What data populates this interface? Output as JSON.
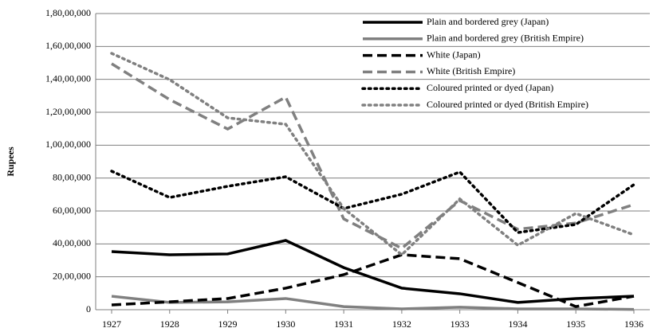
{
  "chart_data": {
    "type": "line",
    "categories": [
      "1927",
      "1928",
      "1929",
      "1930",
      "1931",
      "1932",
      "1933",
      "1934",
      "1935",
      "1936"
    ],
    "y_label": "Rupees",
    "ylim": [
      0,
      18000000
    ],
    "yticks": [
      {
        "value": 0,
        "label": "0"
      },
      {
        "value": 2000000,
        "label": "20,00,000"
      },
      {
        "value": 4000000,
        "label": "40,00,000"
      },
      {
        "value": 6000000,
        "label": "60,00,000"
      },
      {
        "value": 8000000,
        "label": "80,00,000"
      },
      {
        "value": 10000000,
        "label": "1,00,00,000"
      },
      {
        "value": 12000000,
        "label": "1,20,00,000"
      },
      {
        "value": 14000000,
        "label": "1,40,00,000"
      },
      {
        "value": 16000000,
        "label": "1,60,00,000"
      },
      {
        "value": 18000000,
        "label": "1,80,00,000"
      }
    ],
    "grid": true,
    "legend": "top-right",
    "series": [
      {
        "name": "Plain and bordered grey (Japan)",
        "color": "#000000",
        "dash": "solid",
        "values": [
          3530000,
          3340000,
          3390000,
          4210000,
          2560000,
          1310000,
          970000,
          440000,
          680000,
          820000
        ]
      },
      {
        "name": "Plain and bordered grey (British Empire)",
        "color": "#808080",
        "dash": "solid",
        "values": [
          820000,
          440000,
          480000,
          680000,
          190000,
          50000,
          150000,
          50000,
          50000,
          20000
        ]
      },
      {
        "name": "White (Japan)",
        "color": "#000000",
        "dash": "dash",
        "values": [
          290000,
          480000,
          680000,
          1310000,
          2130000,
          3340000,
          3100000,
          1650000,
          190000,
          820000
        ]
      },
      {
        "name": "White (British Empire)",
        "color": "#808080",
        "dash": "dash",
        "values": [
          14950000,
          12770000,
          10980000,
          12920000,
          5520000,
          3730000,
          6630000,
          4890000,
          5270000,
          6390000
        ]
      },
      {
        "name": "Coloured printed or dyed (Japan)",
        "color": "#000000",
        "dash": "dot",
        "values": [
          8420000,
          6820000,
          7500000,
          8080000,
          6150000,
          7020000,
          8370000,
          4690000,
          5180000,
          7600000
        ]
      },
      {
        "name": "Coloured printed or dyed (British Empire)",
        "color": "#808080",
        "dash": "dot",
        "values": [
          15580000,
          13980000,
          11660000,
          11270000,
          6150000,
          3340000,
          6730000,
          3920000,
          5850000,
          4550000
        ]
      }
    ]
  }
}
